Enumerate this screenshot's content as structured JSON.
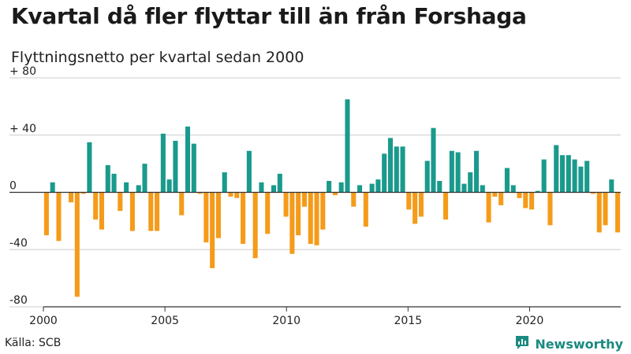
{
  "title": "Kvartal då fler flyttar till än från Forshaga",
  "subtitle": "Flyttningsnetto per kvartal sedan 2000",
  "source": "Källa: SCB",
  "brand": "Newsworthy",
  "colors": {
    "positive": "#1a9a8c",
    "negative": "#f59b1a",
    "axis": "#333333",
    "grid": "#cccccc",
    "brand": "#1a8a80"
  },
  "icons": {
    "logo": "chart-bubble-icon"
  },
  "chart_data": {
    "type": "bar",
    "title": "Kvartal då fler flyttar till än från Forshaga",
    "subtitle": "Flyttningsnetto per kvartal sedan 2000",
    "x_ticks": [
      2000,
      2005,
      2010,
      2015,
      2020
    ],
    "y_ticks": [
      80,
      40,
      0,
      -40,
      -80
    ],
    "y_tick_labels": [
      "+ 80",
      "+ 40",
      "0",
      "-40",
      "-80"
    ],
    "ylim": [
      -80,
      80
    ],
    "xlim": [
      2000.0,
      2023.75
    ],
    "grid": "horizontal",
    "first_quarter": "2000 Q1",
    "values": [
      -30,
      7,
      -34,
      0,
      -7,
      -73,
      -1,
      35,
      -19,
      -26,
      19,
      13,
      -13,
      7,
      -27,
      5,
      20,
      -27,
      -27,
      41,
      9,
      36,
      -16,
      46,
      34,
      -1,
      -35,
      -53,
      -32,
      14,
      -3,
      -4,
      -36,
      29,
      -46,
      7,
      -29,
      5,
      13,
      -17,
      -43,
      -30,
      -10,
      -36,
      -37,
      -26,
      8,
      -2,
      7,
      65,
      -10,
      5,
      -24,
      6,
      9,
      27,
      38,
      32,
      32,
      -12,
      -22,
      -17,
      22,
      45,
      8,
      -19,
      29,
      28,
      6,
      14,
      29,
      5,
      -21,
      -3,
      -9,
      17,
      5,
      -4,
      -11,
      -12,
      1,
      23,
      -23,
      33,
      26,
      26,
      23,
      18,
      22,
      -1,
      -28,
      -23,
      9,
      -28
    ]
  }
}
